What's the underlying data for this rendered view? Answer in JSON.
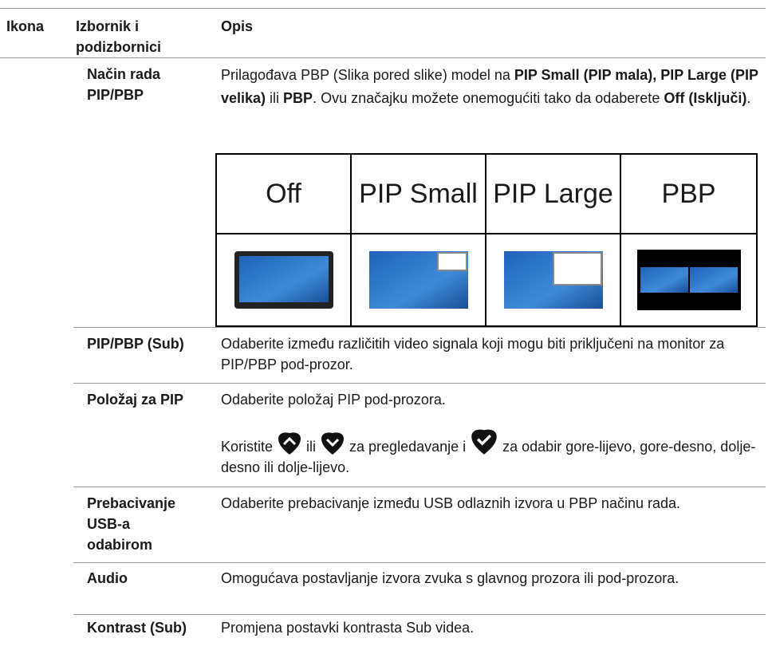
{
  "table": {
    "headers": [
      "Ikona",
      "Izbornik i podizbornici",
      "Opis"
    ],
    "rows": [
      {
        "menu": "Način rada PIP/PBP",
        "description": [
          "Prilagođava PBP (Slika pored slike) model na ",
          "PIP Small (PIP mala), PIP Large (PIP velika)",
          " ili ",
          "PBP",
          ". Ovu značajku možete onemogućiti tako da odaberete ",
          "Off (Isključi)",
          "."
        ],
        "modes": [
          "Off",
          "PIP Small",
          "PIP Large",
          "PBP"
        ]
      },
      {
        "menu": "PIP/PBP (Sub)",
        "description": [
          "Odaberite između različitih video signala koji mogu biti priključeni na monitor za PIP/PBP pod-prozor."
        ]
      },
      {
        "menu": "Položaj za PIP",
        "description": [
          "Odaberite položaj PIP pod-prozora.",
          "Koristite ",
          " ili ",
          " za pregledavanje i ",
          " za odabir gore-lijevo, gore-desno, dolje-desno ili dolje-lijevo."
        ]
      },
      {
        "menu": "Prebacivanje USB-a odabirom",
        "description": [
          "Odaberite prebacivanje između USB odlaznih izvora u PBP načinu rada."
        ]
      },
      {
        "menu": "Audio",
        "description": [
          "Omogućava postavljanje izvora zvuka s glavnog prozora ili pod-prozora."
        ]
      },
      {
        "menu": "Kontrast (Sub)",
        "description": [
          "Promjena postavki kontrasta Sub videa."
        ]
      }
    ]
  }
}
